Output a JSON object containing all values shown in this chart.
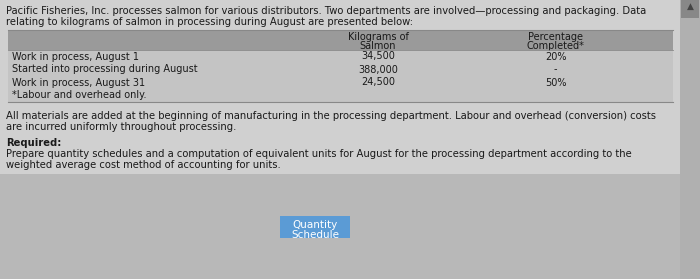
{
  "intro_line1": "Pacific Fisheries, Inc. processes salmon for various distributors. Two departments are involved—processing and packaging. Data",
  "intro_line2": "relating to kilograms of salmon in processing during August are presented below:",
  "table_header_col2_line1": "Kilograms of",
  "table_header_col2_line2": "Salmon",
  "table_header_col3_line1": "Percentage",
  "table_header_col3_line2": "Completed*",
  "table_rows": [
    [
      "Work in process, August 1",
      "34,500",
      "20%"
    ],
    [
      "Started into processing during August",
      "388,000",
      "-"
    ],
    [
      "Work in process, August 31",
      "24,500",
      "50%"
    ],
    [
      "*Labour and overhead only.",
      "",
      ""
    ]
  ],
  "body_line1": "All materials are added at the beginning of manufacturing in the processing department. Labour and overhead (conversion) costs",
  "body_line2": "are incurred uniformly throughout processing.",
  "required_label": "Required:",
  "req_line1": "Prepare quantity schedules and a computation of equivalent units for August for the processing department according to the",
  "req_line2": "weighted average cost method of accounting for units.",
  "button_text_line1": "Quantity",
  "button_text_line2": "Schedule",
  "bg_color": "#d0d0d0",
  "table_header_bg": "#9a9a9a",
  "table_row_bg": "#c4c4c4",
  "btn_area_bg": "#b8b8b8",
  "button_bg": "#5b9bd5",
  "button_text_color": "#ffffff",
  "text_color": "#1a1a1a",
  "scrollbar_bg": "#b0b0b0",
  "scrollbar_thumb": "#888888",
  "fs_intro": 7.2,
  "fs_table": 7.0,
  "fs_body": 7.2,
  "fs_required": 7.2,
  "fs_button": 7.5
}
